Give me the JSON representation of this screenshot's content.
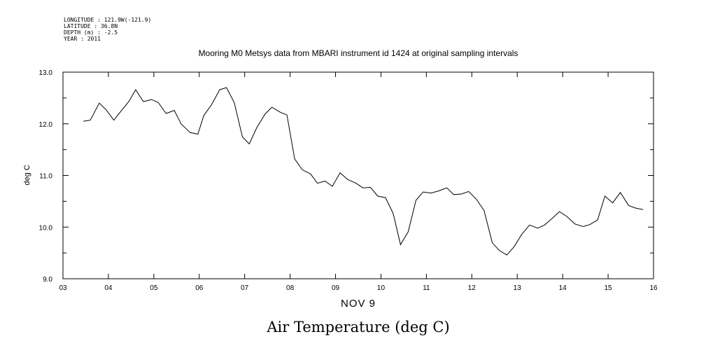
{
  "meta": {
    "longitude": "LONGITUDE : 121.9W(-121.9)",
    "latitude": "LATITUDE : 36.8N",
    "depth": "DEPTH (m) : -2.5",
    "year": "YEAR : 2011"
  },
  "chart_data": {
    "type": "line",
    "title": "Mooring M0 Metsys data from MBARI instrument id 1424 at original sampling intervals",
    "ylabel": "deg C",
    "xlabel": "NOV  9",
    "caption": "Air Temperature (deg C)",
    "xlim": [
      3,
      16
    ],
    "ylim": [
      9.0,
      13.0
    ],
    "x_ticks": [
      "03",
      "04",
      "05",
      "06",
      "07",
      "08",
      "09",
      "10",
      "11",
      "12",
      "13",
      "14",
      "15",
      "16"
    ],
    "y_ticks": [
      "9.0",
      "10.0",
      "11.0",
      "12.0",
      "13.0"
    ],
    "series": [
      {
        "x": [
          3.45,
          3.6,
          3.8,
          3.95,
          4.12,
          4.3,
          4.45,
          4.6,
          4.77,
          4.95,
          5.1,
          5.27,
          5.45,
          5.6,
          5.8,
          5.97,
          6.1,
          6.27,
          6.45,
          6.6,
          6.77,
          6.95,
          7.1,
          7.27,
          7.45,
          7.6,
          7.77,
          7.93,
          8.1,
          8.27,
          8.45,
          8.6,
          8.77,
          8.93,
          9.1,
          9.27,
          9.45,
          9.6,
          9.77,
          9.93,
          10.1,
          10.27,
          10.43,
          10.6,
          10.77,
          10.93,
          11.1,
          11.27,
          11.45,
          11.6,
          11.77,
          11.93,
          12.1,
          12.27,
          12.45,
          12.6,
          12.77,
          12.93,
          13.1,
          13.27,
          13.45,
          13.6,
          13.77,
          13.93,
          14.1,
          14.27,
          14.45,
          14.6,
          14.77,
          14.93,
          15.1,
          15.27,
          15.45,
          15.6,
          15.77
        ],
        "values": [
          12.05,
          12.07,
          12.4,
          12.27,
          12.07,
          12.27,
          12.43,
          12.66,
          12.43,
          12.47,
          12.41,
          12.2,
          12.26,
          12.0,
          11.83,
          11.8,
          12.16,
          12.37,
          12.66,
          12.7,
          12.41,
          11.75,
          11.61,
          11.93,
          12.19,
          12.32,
          12.23,
          12.17,
          11.32,
          11.11,
          11.03,
          10.85,
          10.89,
          10.79,
          11.05,
          10.92,
          10.85,
          10.76,
          10.77,
          10.6,
          10.57,
          10.26,
          9.66,
          9.91,
          10.52,
          10.68,
          10.66,
          10.7,
          10.76,
          10.63,
          10.64,
          10.69,
          10.54,
          10.32,
          9.7,
          9.55,
          9.46,
          9.62,
          9.86,
          10.04,
          9.98,
          10.04,
          10.17,
          10.3,
          10.2,
          10.06,
          10.01,
          10.05,
          10.14,
          10.6,
          10.47,
          10.67,
          10.42,
          10.37,
          10.34
        ]
      }
    ],
    "grid": false,
    "legend": "none"
  }
}
